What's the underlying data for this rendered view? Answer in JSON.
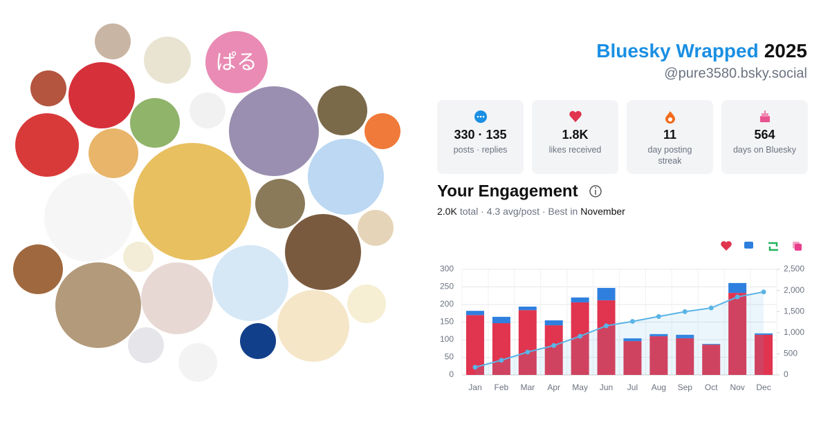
{
  "collage": {
    "badge": "ぱる"
  },
  "header": {
    "title": "Bluesky Wrapped",
    "year": "2025",
    "handle": "@pure3580.bsky.social"
  },
  "stats": [
    {
      "value": "330 · 135",
      "label": "posts · replies"
    },
    {
      "value": "1.8K",
      "label": "likes received"
    },
    {
      "value": "11",
      "label": "day posting streak"
    },
    {
      "value": "564",
      "label": "days on Bluesky"
    }
  ],
  "engagement": {
    "title": "Your Engagement",
    "summary": {
      "total": "2.0K",
      "middle": "total · 4.3 avg/post · Best in",
      "best": "November"
    }
  },
  "chart_data": {
    "type": "bar",
    "stacked": true,
    "grid": true,
    "categories": [
      "Jan",
      "Feb",
      "Mar",
      "Apr",
      "May",
      "Jun",
      "Jul",
      "Aug",
      "Sep",
      "Oct",
      "Nov",
      "Dec"
    ],
    "series": [
      {
        "color": "#e0344f",
        "values": [
          170,
          147,
          184,
          141,
          206,
          212,
          96,
          110,
          104,
          86,
          233,
          114
        ]
      },
      {
        "color": "#2f7fdf",
        "values": [
          12,
          18,
          10,
          14,
          14,
          35,
          8,
          6,
          10,
          2,
          28,
          4
        ]
      },
      {
        "color": "#5ab4e6",
        "axis": "y2",
        "values": [
          182,
          347,
          541,
          696,
          916,
          1163,
          1267,
          1383,
          1497,
          1585,
          1846,
          1964
        ]
      }
    ],
    "ylim": [
      0,
      300
    ],
    "yticks": [
      0,
      50,
      100,
      150,
      200,
      250,
      300
    ],
    "y2lim": [
      0,
      2500
    ],
    "y2ticks": [
      0,
      500,
      {
        "value": 1000,
        "label": "1,000"
      },
      {
        "value": 1500,
        "label": "1,500"
      },
      {
        "value": 2000,
        "label": "2,000"
      },
      {
        "value": 2500,
        "label": "2,500"
      }
    ]
  }
}
